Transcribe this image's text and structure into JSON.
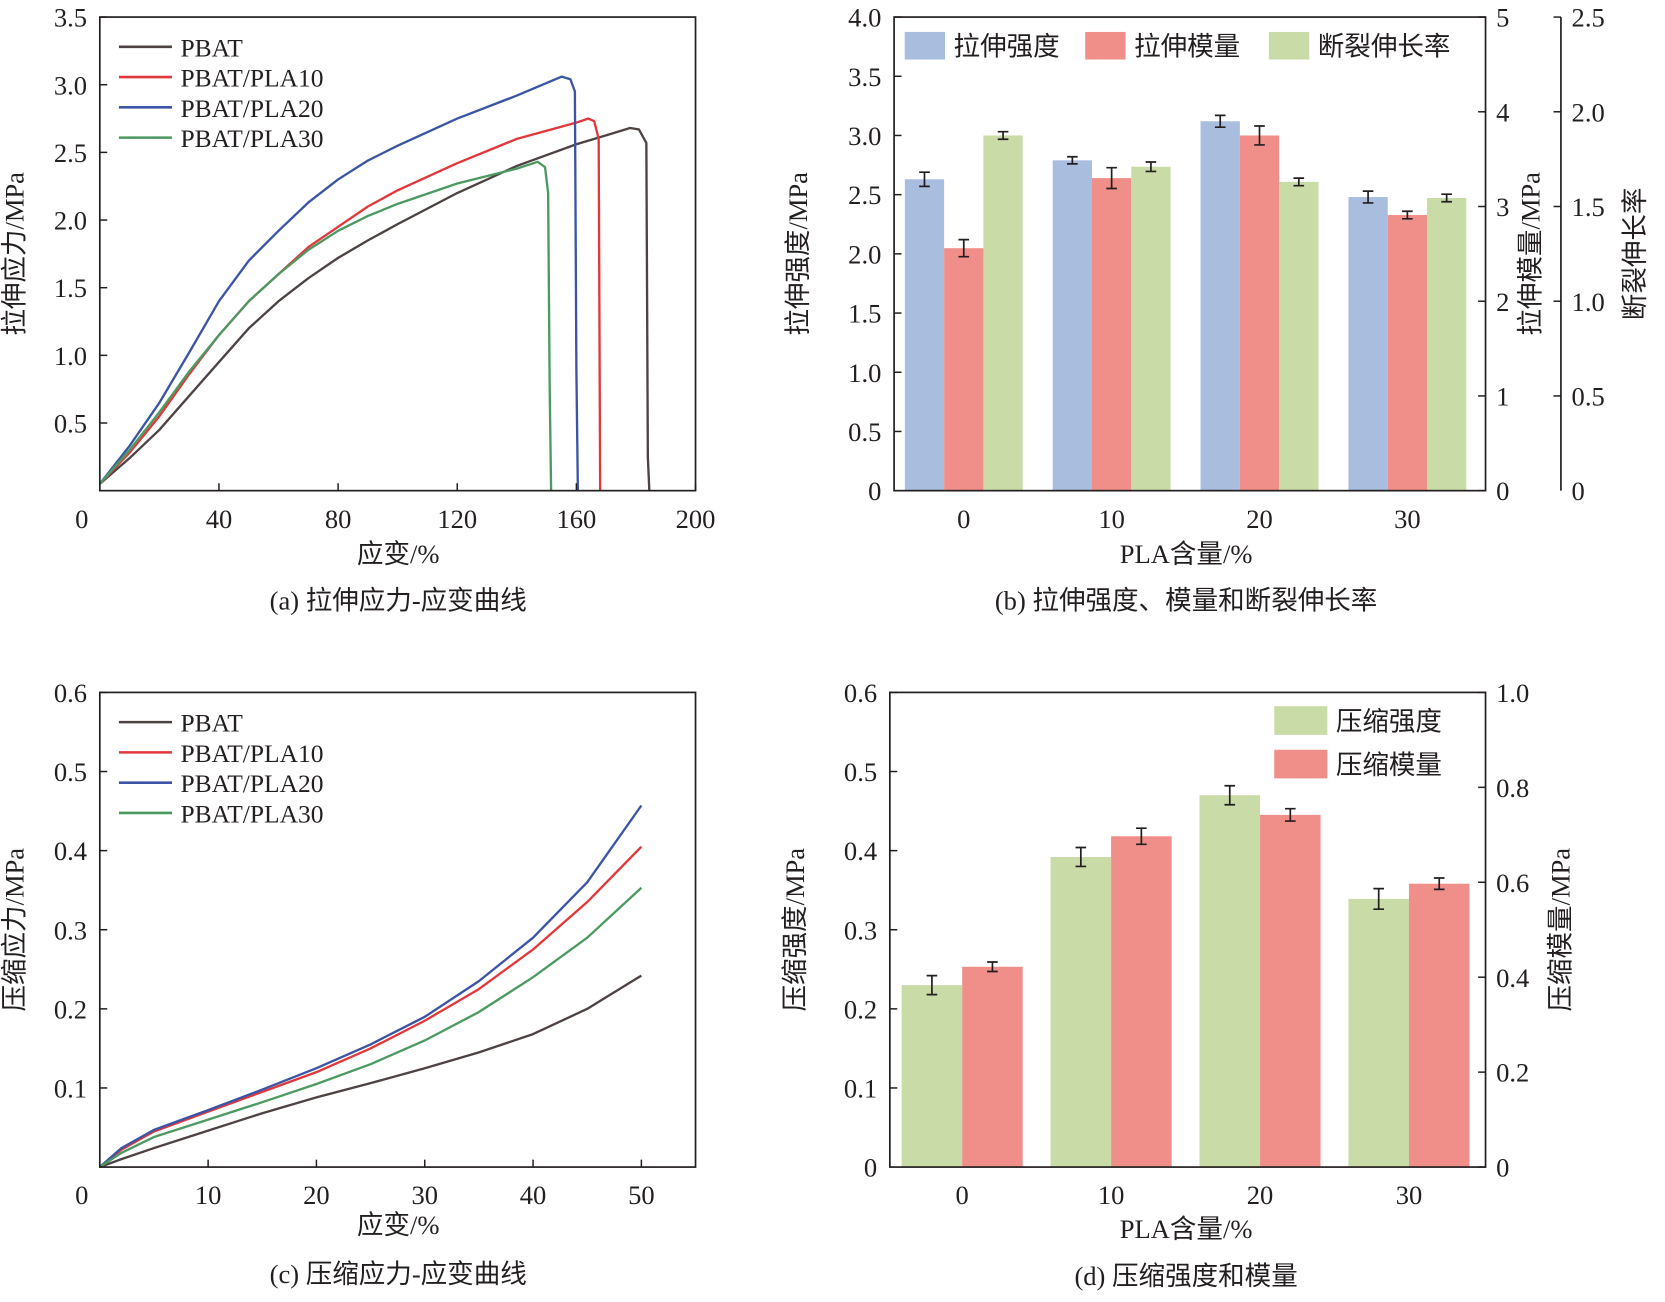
{
  "chart_data": [
    {
      "id": "a",
      "type": "line",
      "caption": "(a) 拉伸应力-应变曲线",
      "xlabel": "应变/%",
      "ylabel": "拉伸应力/MPa",
      "xlim": [
        0,
        200
      ],
      "ylim": [
        0,
        3.5
      ],
      "xticks": [
        0,
        40,
        80,
        120,
        160,
        200
      ],
      "yticks": [
        0.5,
        1.0,
        1.5,
        2.0,
        2.5,
        3.0,
        3.5
      ],
      "ytick_labels": [
        "0.5",
        "1.0",
        "1.5",
        "2.0",
        "2.5",
        "3.0",
        "3.5"
      ],
      "corner_label": "0",
      "legend": "top-left",
      "series": [
        {
          "name": "PBAT",
          "color": "#4d4343",
          "points": [
            [
              0,
              0.05
            ],
            [
              10,
              0.24
            ],
            [
              20,
              0.45
            ],
            [
              30,
              0.7
            ],
            [
              40,
              0.95
            ],
            [
              50,
              1.2
            ],
            [
              60,
              1.4
            ],
            [
              70,
              1.57
            ],
            [
              80,
              1.72
            ],
            [
              90,
              1.85
            ],
            [
              100,
              1.97
            ],
            [
              120,
              2.2
            ],
            [
              140,
              2.4
            ],
            [
              160,
              2.56
            ],
            [
              172,
              2.64
            ],
            [
              178,
              2.68
            ],
            [
              181,
              2.67
            ],
            [
              183.5,
              2.57
            ],
            [
              184,
              0.25
            ],
            [
              184.5,
              0
            ]
          ]
        },
        {
          "name": "PBAT/PLA10",
          "color": "#e2383c",
          "points": [
            [
              0,
              0.05
            ],
            [
              10,
              0.28
            ],
            [
              20,
              0.55
            ],
            [
              30,
              0.86
            ],
            [
              40,
              1.15
            ],
            [
              50,
              1.4
            ],
            [
              60,
              1.6
            ],
            [
              70,
              1.8
            ],
            [
              80,
              1.95
            ],
            [
              90,
              2.1
            ],
            [
              100,
              2.22
            ],
            [
              120,
              2.42
            ],
            [
              140,
              2.6
            ],
            [
              160,
              2.72
            ],
            [
              164,
              2.75
            ],
            [
              166,
              2.73
            ],
            [
              167.5,
              2.6
            ],
            [
              168,
              0
            ]
          ]
        },
        {
          "name": "PBAT/PLA20",
          "color": "#3b55a4",
          "points": [
            [
              0,
              0.05
            ],
            [
              10,
              0.33
            ],
            [
              20,
              0.65
            ],
            [
              30,
              1.02
            ],
            [
              40,
              1.4
            ],
            [
              50,
              1.7
            ],
            [
              60,
              1.92
            ],
            [
              70,
              2.13
            ],
            [
              80,
              2.3
            ],
            [
              90,
              2.44
            ],
            [
              100,
              2.55
            ],
            [
              120,
              2.75
            ],
            [
              140,
              2.92
            ],
            [
              155,
              3.06
            ],
            [
              158,
              3.04
            ],
            [
              159.5,
              2.95
            ],
            [
              160,
              0.9
            ],
            [
              160.5,
              0
            ]
          ]
        },
        {
          "name": "PBAT/PLA30",
          "color": "#4c9a62",
          "points": [
            [
              0,
              0.05
            ],
            [
              10,
              0.3
            ],
            [
              20,
              0.58
            ],
            [
              30,
              0.88
            ],
            [
              40,
              1.15
            ],
            [
              50,
              1.4
            ],
            [
              60,
              1.6
            ],
            [
              70,
              1.78
            ],
            [
              80,
              1.92
            ],
            [
              90,
              2.03
            ],
            [
              100,
              2.12
            ],
            [
              120,
              2.27
            ],
            [
              140,
              2.38
            ],
            [
              147,
              2.43
            ],
            [
              149.5,
              2.39
            ],
            [
              150.5,
              2.2
            ],
            [
              151,
              0.8
            ],
            [
              151.5,
              0
            ]
          ]
        }
      ]
    },
    {
      "id": "b",
      "type": "bar",
      "caption": "(b) 拉伸强度、模量和断裂伸长率",
      "xlabel": "PLA含量/%",
      "ylabel": "拉伸强度/MPa",
      "ylabel_right": "拉伸模量/MPa",
      "ylabel_right2": "断裂伸长率",
      "categories": [
        "0",
        "10",
        "20",
        "30"
      ],
      "ylim": [
        0,
        4.0
      ],
      "ylim_right": [
        0,
        5
      ],
      "ylim_right2": [
        0,
        2.5
      ],
      "yticks": [
        "0",
        "0.5",
        "1.0",
        "1.5",
        "2.0",
        "2.5",
        "3.0",
        "3.5",
        "4.0"
      ],
      "yticks_right": [
        "0",
        "1",
        "2",
        "3",
        "4",
        "5"
      ],
      "yticks_right2": [
        "0",
        "0.5",
        "1.0",
        "1.5",
        "2.0",
        "2.5"
      ],
      "legend": "top",
      "series": [
        {
          "name": "拉伸强度",
          "axis": "left",
          "color": "#a9bddf",
          "values": [
            2.63,
            2.79,
            3.12,
            2.48
          ],
          "errors": [
            0.06,
            0.03,
            0.05,
            0.05
          ]
        },
        {
          "name": "拉伸模量",
          "axis": "right",
          "color": "#f08f8a",
          "values": [
            2.56,
            3.3,
            3.75,
            2.91
          ],
          "errors": [
            0.09,
            0.11,
            0.1,
            0.04
          ]
        },
        {
          "name": "断裂伸长率",
          "axis": "right2",
          "color": "#c9dba7",
          "values": [
            1.875,
            1.71,
            1.63,
            1.545
          ],
          "errors": [
            0.02,
            0.025,
            0.02,
            0.02
          ]
        }
      ]
    },
    {
      "id": "c",
      "type": "line",
      "caption": "(c) 压缩应力-应变曲线",
      "xlabel": "应变/%",
      "ylabel": "压缩应力/MPa",
      "xlim": [
        0,
        55
      ],
      "ylim": [
        0,
        0.6
      ],
      "xticks": [
        0,
        10,
        20,
        30,
        40,
        50
      ],
      "yticks": [
        0.1,
        0.2,
        0.3,
        0.4,
        0.5,
        0.6
      ],
      "ytick_labels": [
        "0.1",
        "0.2",
        "0.3",
        "0.4",
        "0.5",
        "0.6"
      ],
      "corner_label": "0",
      "legend": "top-left",
      "series": [
        {
          "name": "PBAT",
          "color": "#4d4343",
          "points": [
            [
              0,
              0
            ],
            [
              2,
              0.01
            ],
            [
              5,
              0.024
            ],
            [
              10,
              0.046
            ],
            [
              15,
              0.068
            ],
            [
              20,
              0.088
            ],
            [
              25,
              0.106
            ],
            [
              30,
              0.125
            ],
            [
              35,
              0.145
            ],
            [
              40,
              0.168
            ],
            [
              45,
              0.2
            ],
            [
              50,
              0.242
            ]
          ]
        },
        {
          "name": "PBAT/PLA10",
          "color": "#e2383c",
          "points": [
            [
              0,
              0
            ],
            [
              2,
              0.022
            ],
            [
              5,
              0.045
            ],
            [
              10,
              0.07
            ],
            [
              15,
              0.095
            ],
            [
              20,
              0.12
            ],
            [
              25,
              0.15
            ],
            [
              30,
              0.185
            ],
            [
              35,
              0.225
            ],
            [
              40,
              0.275
            ],
            [
              45,
              0.335
            ],
            [
              50,
              0.405
            ]
          ]
        },
        {
          "name": "PBAT/PLA20",
          "color": "#3b55a4",
          "points": [
            [
              0,
              0
            ],
            [
              2,
              0.024
            ],
            [
              5,
              0.047
            ],
            [
              10,
              0.072
            ],
            [
              15,
              0.098
            ],
            [
              20,
              0.125
            ],
            [
              25,
              0.155
            ],
            [
              30,
              0.19
            ],
            [
              35,
              0.235
            ],
            [
              40,
              0.29
            ],
            [
              45,
              0.36
            ],
            [
              50,
              0.457
            ]
          ]
        },
        {
          "name": "PBAT/PLA30",
          "color": "#4c9a62",
          "points": [
            [
              0,
              0
            ],
            [
              2,
              0.018
            ],
            [
              5,
              0.038
            ],
            [
              10,
              0.06
            ],
            [
              15,
              0.082
            ],
            [
              20,
              0.105
            ],
            [
              25,
              0.13
            ],
            [
              30,
              0.16
            ],
            [
              35,
              0.196
            ],
            [
              40,
              0.24
            ],
            [
              45,
              0.29
            ],
            [
              50,
              0.353
            ]
          ]
        }
      ]
    },
    {
      "id": "d",
      "type": "bar",
      "caption": "(d) 压缩强度和模量",
      "xlabel": "PLA含量/%",
      "ylabel": "压缩强度/MPa",
      "ylabel_right": "压缩模量/MPa",
      "categories": [
        "0",
        "10",
        "20",
        "30"
      ],
      "ylim": [
        0,
        0.6
      ],
      "ylim_right": [
        0,
        1.0
      ],
      "yticks": [
        "0",
        "0.1",
        "0.2",
        "0.3",
        "0.4",
        "0.5",
        "0.6"
      ],
      "yticks_right": [
        "0",
        "0.2",
        "0.4",
        "0.6",
        "0.8",
        "1.0"
      ],
      "legend": "top-right",
      "series": [
        {
          "name": "压缩强度",
          "axis": "left",
          "color": "#c9dba7",
          "values": [
            0.23,
            0.392,
            0.47,
            0.339
          ],
          "errors": [
            0.012,
            0.012,
            0.012,
            0.013
          ]
        },
        {
          "name": "压缩模量",
          "axis": "right",
          "color": "#f08f8a",
          "values": [
            0.422,
            0.697,
            0.742,
            0.597
          ],
          "errors": [
            0.01,
            0.017,
            0.013,
            0.012
          ]
        }
      ]
    }
  ]
}
